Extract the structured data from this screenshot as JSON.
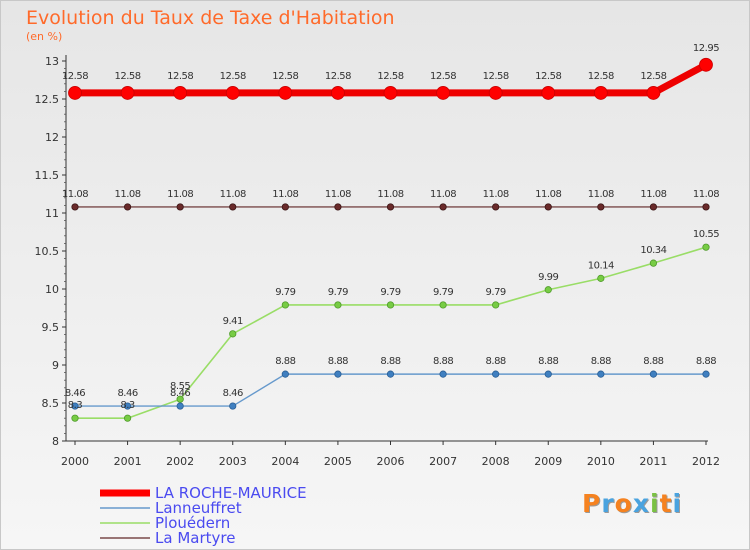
{
  "title": "Evolution du Taux de Taxe d'Habitation",
  "subtitle": "(en %)",
  "logo": {
    "letters": [
      "P",
      "r",
      "o",
      "x",
      "i",
      "t",
      "i"
    ],
    "colors": [
      "#f58220",
      "#4aa3df",
      "#f58220",
      "#4aa3df",
      "#7ac143",
      "#f58220",
      "#4aa3df"
    ]
  },
  "chart_data": {
    "type": "line",
    "x": [
      2000,
      2001,
      2002,
      2003,
      2004,
      2005,
      2006,
      2007,
      2008,
      2009,
      2010,
      2011,
      2012
    ],
    "ylim": [
      8,
      13
    ],
    "yticks": [
      8,
      8.5,
      9,
      9.5,
      10,
      10.5,
      11,
      11.5,
      12,
      12.5,
      13
    ],
    "grid": false,
    "legend_position": "bottom-left",
    "series": [
      {
        "name": "LA ROCHE-MAURICE",
        "color": "#ff0000",
        "values": [
          12.58,
          12.58,
          12.58,
          12.58,
          12.58,
          12.58,
          12.58,
          12.58,
          12.58,
          12.58,
          12.58,
          12.58,
          12.95
        ],
        "labels": [
          "12.58",
          "12.58",
          "12.58",
          "12.58",
          "12.58",
          "12.58",
          "12.58",
          "12.58",
          "12.58",
          "12.58",
          "12.58",
          "12.58",
          "12.95"
        ]
      },
      {
        "name": "Lanneuffret",
        "color": "#6699cc",
        "values": [
          8.46,
          8.46,
          8.46,
          8.46,
          8.88,
          8.88,
          8.88,
          8.88,
          8.88,
          8.88,
          8.88,
          8.88,
          8.88
        ],
        "labels": [
          "8.46",
          "8.46",
          "8.46",
          "8.46",
          "8.88",
          "8.88",
          "8.88",
          "8.88",
          "8.88",
          "8.88",
          "8.88",
          "8.88",
          "8.88"
        ]
      },
      {
        "name": "Plouédern",
        "color": "#99dd66",
        "values": [
          8.3,
          8.3,
          8.55,
          9.41,
          9.79,
          9.79,
          9.79,
          9.79,
          9.79,
          9.99,
          10.14,
          10.34,
          10.55
        ],
        "labels": [
          "8.3",
          "8.3",
          "8.55",
          "9.41",
          "9.79",
          "9.79",
          "9.79",
          "9.79",
          "9.79",
          "9.99",
          "10.14",
          "10.34",
          "10.55"
        ]
      },
      {
        "name": "La Martyre",
        "color": "#7a4a4a",
        "values": [
          11.08,
          11.08,
          11.08,
          11.08,
          11.08,
          11.08,
          11.08,
          11.08,
          11.08,
          11.08,
          11.08,
          11.08,
          11.08
        ],
        "labels": [
          "11.08",
          "11.08",
          "11.08",
          "11.08",
          "11.08",
          "11.08",
          "11.08",
          "11.08",
          "11.08",
          "11.08",
          "11.08",
          "11.08",
          "11.08"
        ]
      }
    ]
  }
}
